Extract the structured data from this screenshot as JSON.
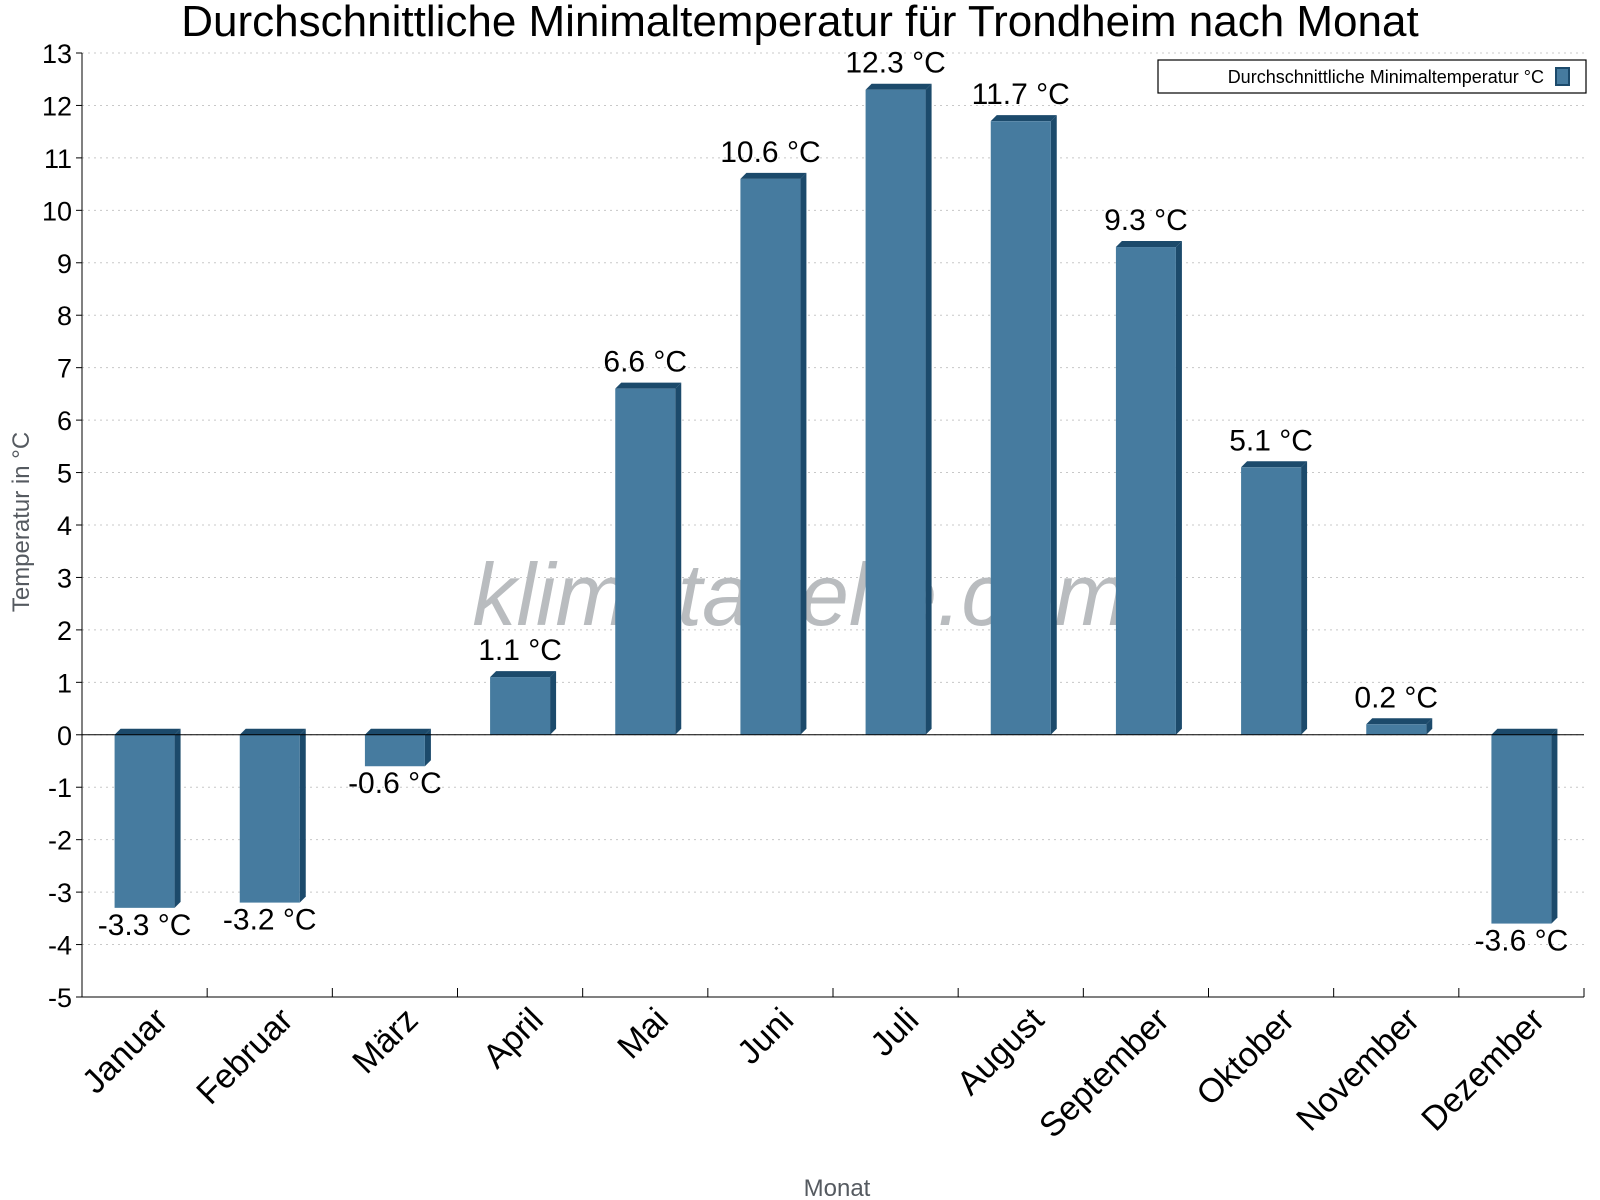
{
  "chart_data": {
    "type": "bar",
    "title": "Durchschnittliche Minimaltemperatur für Trondheim nach Monat",
    "xlabel": "Monat",
    "ylabel": "Temperatur in °C",
    "categories": [
      "Januar",
      "Februar",
      "März",
      "April",
      "Mai",
      "Juni",
      "Juli",
      "August",
      "September",
      "Oktober",
      "November",
      "Dezember"
    ],
    "series": [
      {
        "name": "Durchschnittliche Minimaltemperatur °C",
        "values": [
          -3.3,
          -3.2,
          -0.6,
          1.1,
          6.6,
          10.6,
          12.3,
          11.7,
          9.3,
          5.1,
          0.2,
          -3.6
        ],
        "labels": [
          "-3.3 °C",
          "-3.2 °C",
          "-0.6 °C",
          "1.1 °C",
          "6.6 °C",
          "10.6 °C",
          "12.3 °C",
          "11.7 °C",
          "9.3 °C",
          "5.1 °C",
          "0.2 °C",
          "-3.6 °C"
        ]
      }
    ],
    "ylim": [
      -5,
      13
    ],
    "yticks": [
      13,
      12,
      11,
      10,
      9,
      8,
      7,
      6,
      5,
      4,
      3,
      2,
      1,
      0,
      -1,
      -2,
      -3,
      -4,
      -5
    ],
    "grid": true,
    "legend": "top-right",
    "colors": {
      "bar": "#467b9f",
      "bar_side": "#1c4a6b",
      "grid": "#c8c8c8"
    },
    "watermark": "klimatabelle.com"
  }
}
